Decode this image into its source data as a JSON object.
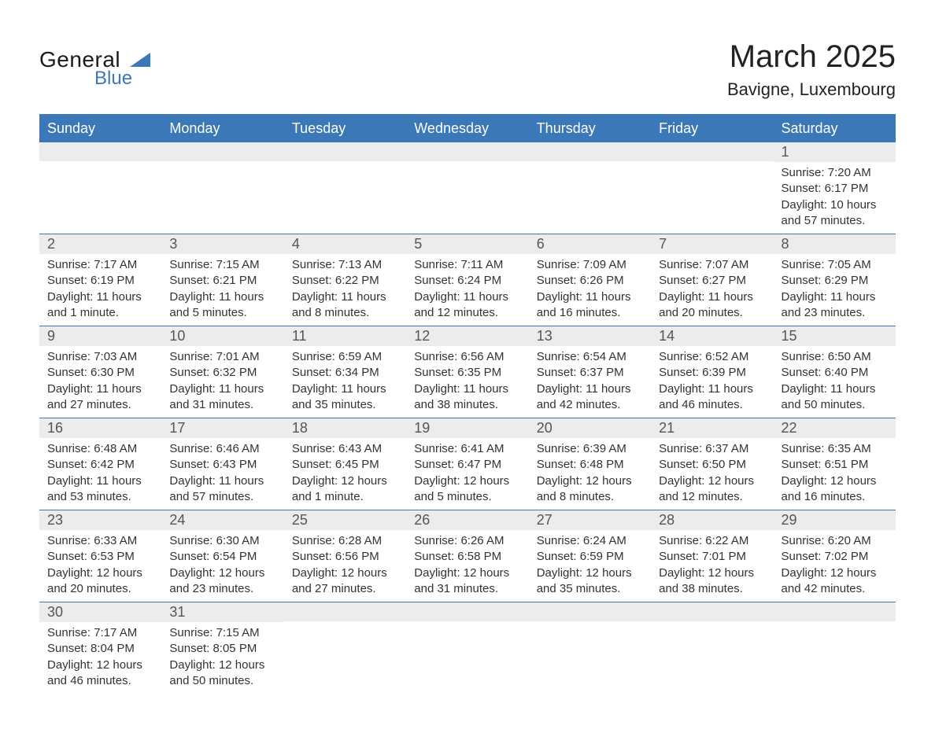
{
  "logo": {
    "line1": "General",
    "line2": "Blue"
  },
  "title": "March 2025",
  "location": "Bavigne, Luxembourg",
  "colors": {
    "header_bg": "#3b78b8",
    "header_text": "#ffffff",
    "daynum_bg": "#ececec",
    "daynum_text": "#555555",
    "body_text": "#333333",
    "page_bg": "#ffffff",
    "row_border": "#3b78b8",
    "logo_text": "#1a1a1a",
    "logo_blue": "#3b78b8"
  },
  "typography": {
    "title_fontsize": 40,
    "location_fontsize": 22,
    "weekday_fontsize": 18,
    "daynum_fontsize": 18,
    "body_fontsize": 15
  },
  "weekdays": [
    "Sunday",
    "Monday",
    "Tuesday",
    "Wednesday",
    "Thursday",
    "Friday",
    "Saturday"
  ],
  "calendar": {
    "type": "table",
    "columns": 7,
    "start_weekday_index": 6,
    "days": [
      {
        "n": 1,
        "sunrise": "7:20 AM",
        "sunset": "6:17 PM",
        "daylight": "10 hours and 57 minutes."
      },
      {
        "n": 2,
        "sunrise": "7:17 AM",
        "sunset": "6:19 PM",
        "daylight": "11 hours and 1 minute."
      },
      {
        "n": 3,
        "sunrise": "7:15 AM",
        "sunset": "6:21 PM",
        "daylight": "11 hours and 5 minutes."
      },
      {
        "n": 4,
        "sunrise": "7:13 AM",
        "sunset": "6:22 PM",
        "daylight": "11 hours and 8 minutes."
      },
      {
        "n": 5,
        "sunrise": "7:11 AM",
        "sunset": "6:24 PM",
        "daylight": "11 hours and 12 minutes."
      },
      {
        "n": 6,
        "sunrise": "7:09 AM",
        "sunset": "6:26 PM",
        "daylight": "11 hours and 16 minutes."
      },
      {
        "n": 7,
        "sunrise": "7:07 AM",
        "sunset": "6:27 PM",
        "daylight": "11 hours and 20 minutes."
      },
      {
        "n": 8,
        "sunrise": "7:05 AM",
        "sunset": "6:29 PM",
        "daylight": "11 hours and 23 minutes."
      },
      {
        "n": 9,
        "sunrise": "7:03 AM",
        "sunset": "6:30 PM",
        "daylight": "11 hours and 27 minutes."
      },
      {
        "n": 10,
        "sunrise": "7:01 AM",
        "sunset": "6:32 PM",
        "daylight": "11 hours and 31 minutes."
      },
      {
        "n": 11,
        "sunrise": "6:59 AM",
        "sunset": "6:34 PM",
        "daylight": "11 hours and 35 minutes."
      },
      {
        "n": 12,
        "sunrise": "6:56 AM",
        "sunset": "6:35 PM",
        "daylight": "11 hours and 38 minutes."
      },
      {
        "n": 13,
        "sunrise": "6:54 AM",
        "sunset": "6:37 PM",
        "daylight": "11 hours and 42 minutes."
      },
      {
        "n": 14,
        "sunrise": "6:52 AM",
        "sunset": "6:39 PM",
        "daylight": "11 hours and 46 minutes."
      },
      {
        "n": 15,
        "sunrise": "6:50 AM",
        "sunset": "6:40 PM",
        "daylight": "11 hours and 50 minutes."
      },
      {
        "n": 16,
        "sunrise": "6:48 AM",
        "sunset": "6:42 PM",
        "daylight": "11 hours and 53 minutes."
      },
      {
        "n": 17,
        "sunrise": "6:46 AM",
        "sunset": "6:43 PM",
        "daylight": "11 hours and 57 minutes."
      },
      {
        "n": 18,
        "sunrise": "6:43 AM",
        "sunset": "6:45 PM",
        "daylight": "12 hours and 1 minute."
      },
      {
        "n": 19,
        "sunrise": "6:41 AM",
        "sunset": "6:47 PM",
        "daylight": "12 hours and 5 minutes."
      },
      {
        "n": 20,
        "sunrise": "6:39 AM",
        "sunset": "6:48 PM",
        "daylight": "12 hours and 8 minutes."
      },
      {
        "n": 21,
        "sunrise": "6:37 AM",
        "sunset": "6:50 PM",
        "daylight": "12 hours and 12 minutes."
      },
      {
        "n": 22,
        "sunrise": "6:35 AM",
        "sunset": "6:51 PM",
        "daylight": "12 hours and 16 minutes."
      },
      {
        "n": 23,
        "sunrise": "6:33 AM",
        "sunset": "6:53 PM",
        "daylight": "12 hours and 20 minutes."
      },
      {
        "n": 24,
        "sunrise": "6:30 AM",
        "sunset": "6:54 PM",
        "daylight": "12 hours and 23 minutes."
      },
      {
        "n": 25,
        "sunrise": "6:28 AM",
        "sunset": "6:56 PM",
        "daylight": "12 hours and 27 minutes."
      },
      {
        "n": 26,
        "sunrise": "6:26 AM",
        "sunset": "6:58 PM",
        "daylight": "12 hours and 31 minutes."
      },
      {
        "n": 27,
        "sunrise": "6:24 AM",
        "sunset": "6:59 PM",
        "daylight": "12 hours and 35 minutes."
      },
      {
        "n": 28,
        "sunrise": "6:22 AM",
        "sunset": "7:01 PM",
        "daylight": "12 hours and 38 minutes."
      },
      {
        "n": 29,
        "sunrise": "6:20 AM",
        "sunset": "7:02 PM",
        "daylight": "12 hours and 42 minutes."
      },
      {
        "n": 30,
        "sunrise": "7:17 AM",
        "sunset": "8:04 PM",
        "daylight": "12 hours and 46 minutes."
      },
      {
        "n": 31,
        "sunrise": "7:15 AM",
        "sunset": "8:05 PM",
        "daylight": "12 hours and 50 minutes."
      }
    ]
  },
  "labels": {
    "sunrise": "Sunrise: ",
    "sunset": "Sunset: ",
    "daylight": "Daylight: "
  }
}
